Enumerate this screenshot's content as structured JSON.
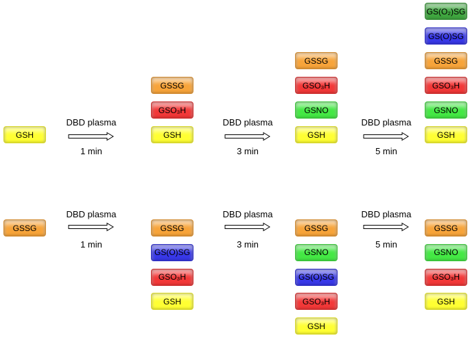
{
  "rows": [
    {
      "start": {
        "label": "GSH",
        "color": "#ffff33"
      },
      "steps": [
        {
          "process": "DBD plasma",
          "time": "1 min",
          "products": [
            {
              "label": "GSSG",
              "color": "#f7a43a"
            },
            {
              "label": "GSO₃H",
              "color": "#f23838"
            },
            {
              "label": "GSH",
              "color": "#ffff33"
            }
          ]
        },
        {
          "process": "DBD plasma",
          "time": "3 min",
          "products": [
            {
              "label": "GSSG",
              "color": "#f7a43a"
            },
            {
              "label": "GSO₃H",
              "color": "#f23838"
            },
            {
              "label": "GSNO",
              "color": "#44e844"
            },
            {
              "label": "GSH",
              "color": "#ffff33"
            }
          ]
        },
        {
          "process": "DBD plasma",
          "time": "5 min",
          "products": [
            {
              "label": "GS(O₂)SG",
              "color": "#3fa63f"
            },
            {
              "label": "GS(O)SG",
              "color": "#3838e8"
            },
            {
              "label": "GSSG",
              "color": "#f7a43a"
            },
            {
              "label": "GSO₃H",
              "color": "#f23838"
            },
            {
              "label": "GSNO",
              "color": "#44e844"
            },
            {
              "label": "GSH",
              "color": "#ffff33"
            }
          ]
        }
      ]
    },
    {
      "start": {
        "label": "GSSG",
        "color": "#f7a43a"
      },
      "steps": [
        {
          "process": "DBD plasma",
          "time": "1 min",
          "products": [
            {
              "label": "GSSG",
              "color": "#f7a43a"
            },
            {
              "label": "GS(O)SG",
              "color": "#3838e8"
            },
            {
              "label": "GSO₃H",
              "color": "#f23838"
            },
            {
              "label": "GSH",
              "color": "#ffff33"
            }
          ]
        },
        {
          "process": "DBD plasma",
          "time": "3 min",
          "products": [
            {
              "label": "GSSG",
              "color": "#f7a43a"
            },
            {
              "label": "GSNO",
              "color": "#44e844"
            },
            {
              "label": "GS(O)SG",
              "color": "#3838e8"
            },
            {
              "label": "GSO₃H",
              "color": "#f23838"
            },
            {
              "label": "GSH",
              "color": "#ffff33"
            }
          ]
        },
        {
          "process": "DBD plasma",
          "time": "5 min",
          "products": [
            {
              "label": "GSSG",
              "color": "#f7a43a"
            },
            {
              "label": "GSNO",
              "color": "#44e844"
            },
            {
              "label": "GSO₃H",
              "color": "#f23838"
            },
            {
              "label": "GSH",
              "color": "#ffff33"
            }
          ]
        }
      ]
    }
  ]
}
